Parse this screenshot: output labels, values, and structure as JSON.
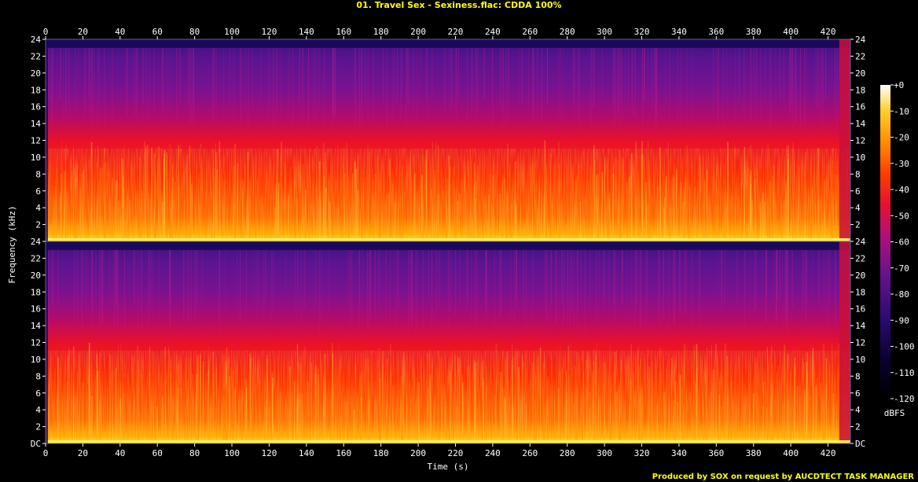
{
  "chart_data": {
    "type": "heatmap",
    "title": "01. Travel Sex - Sexiness.flac: CDDA 100%",
    "xlabel": "Time (s)",
    "ylabel": "Frequency (kHz)",
    "colorbar_label": "dBFS",
    "credit": "Produced by SOX on request by AUCDTECT TASK MANAGER",
    "xlim": [
      0,
      432
    ],
    "ylim_khz": [
      0,
      24
    ],
    "colorbar_range_db": [
      -120,
      0
    ],
    "x_ticks": [
      0,
      20,
      40,
      60,
      80,
      100,
      120,
      140,
      160,
      180,
      200,
      220,
      240,
      260,
      280,
      300,
      320,
      340,
      360,
      380,
      400,
      420
    ],
    "y_ticks": [
      {
        "value": 0,
        "label": "DC"
      },
      {
        "value": 2,
        "label": "2"
      },
      {
        "value": 4,
        "label": "4"
      },
      {
        "value": 6,
        "label": "6"
      },
      {
        "value": 8,
        "label": "8"
      },
      {
        "value": 10,
        "label": "10"
      },
      {
        "value": 12,
        "label": "12"
      },
      {
        "value": 14,
        "label": "14"
      },
      {
        "value": 16,
        "label": "16"
      },
      {
        "value": 18,
        "label": "18"
      },
      {
        "value": 20,
        "label": "20"
      },
      {
        "value": 22,
        "label": "22"
      },
      {
        "value": 24,
        "label": "24"
      }
    ],
    "colorbar_ticks": [
      {
        "value": 0,
        "label": "+0"
      },
      {
        "value": -10,
        "label": "-10"
      },
      {
        "value": -20,
        "label": "-20"
      },
      {
        "value": -30,
        "label": "-30"
      },
      {
        "value": -40,
        "label": "-40"
      },
      {
        "value": -50,
        "label": "-50"
      },
      {
        "value": -60,
        "label": "-60"
      },
      {
        "value": -70,
        "label": "-70"
      },
      {
        "value": -80,
        "label": "-80"
      },
      {
        "value": -90,
        "label": "-90"
      },
      {
        "value": -100,
        "label": "-100"
      },
      {
        "value": -110,
        "label": "-110"
      },
      {
        "value": -120,
        "label": "-120"
      }
    ],
    "channels": 2,
    "spectral_cutoff_khz": 23,
    "colormap": [
      "#000000",
      "#1a0050",
      "#4b0c8a",
      "#9a0f8c",
      "#e0103a",
      "#ff3a00",
      "#ff9a00",
      "#ffe040",
      "#ffffff"
    ]
  }
}
